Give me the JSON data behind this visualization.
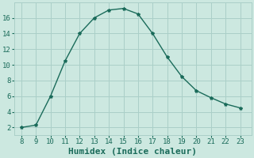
{
  "x": [
    8,
    9,
    10,
    11,
    12,
    13,
    14,
    15,
    16,
    17,
    18,
    19,
    20,
    21,
    22,
    23
  ],
  "y": [
    2,
    2.3,
    6,
    10.5,
    14,
    16,
    17,
    17.2,
    16.5,
    14,
    11,
    8.5,
    6.7,
    5.8,
    5,
    4.5
  ],
  "line_color": "#1a6b5a",
  "marker": "*",
  "marker_size": 3,
  "bg_color": "#cce8e0",
  "grid_color": "#aacfc8",
  "xlabel": "Humidex (Indice chaleur)",
  "xlabel_fontsize": 8,
  "xticks": [
    8,
    9,
    10,
    11,
    12,
    13,
    14,
    15,
    16,
    17,
    18,
    19,
    20,
    21,
    22,
    23
  ],
  "yticks": [
    2,
    4,
    6,
    8,
    10,
    12,
    14,
    16
  ],
  "ylim": [
    1.0,
    18.0
  ],
  "xlim": [
    7.5,
    23.8
  ],
  "tick_fontsize": 6.5,
  "linewidth": 1.0
}
